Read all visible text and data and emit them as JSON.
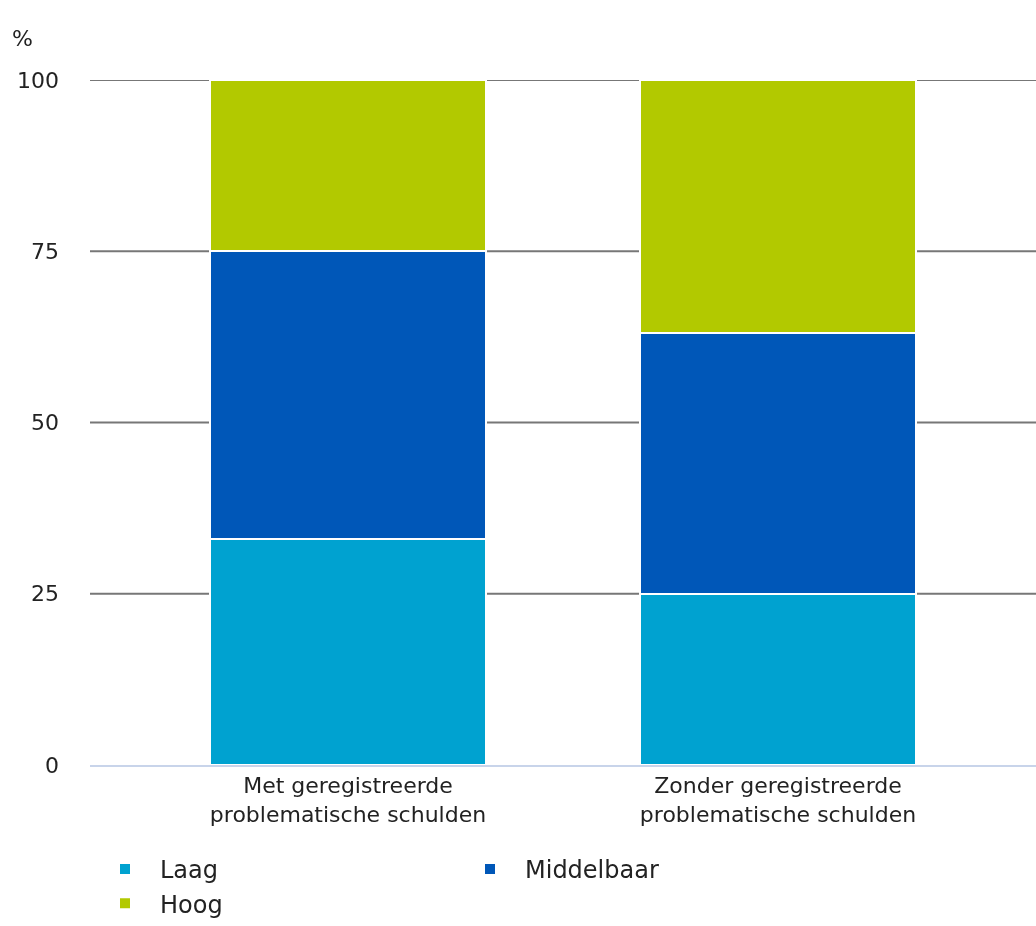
{
  "chart_data": {
    "type": "bar",
    "stacked": true,
    "ylabel": "%",
    "categories": [
      "Met geregistreerde problematische schulden",
      "Zonder geregistreerde problematische schulden"
    ],
    "series": [
      {
        "name": "Laag",
        "color": "#00a2d0",
        "values": [
          33,
          25
        ]
      },
      {
        "name": "Middelbaar",
        "color": "#0057b8",
        "values": [
          42,
          38
        ]
      },
      {
        "name": "Hoog",
        "color": "#b2c900",
        "values": [
          25,
          37
        ]
      }
    ],
    "ylim": [
      0,
      100
    ],
    "yticks": [
      0,
      25,
      50,
      75,
      100
    ],
    "grid": "y",
    "legend": "bottom"
  }
}
